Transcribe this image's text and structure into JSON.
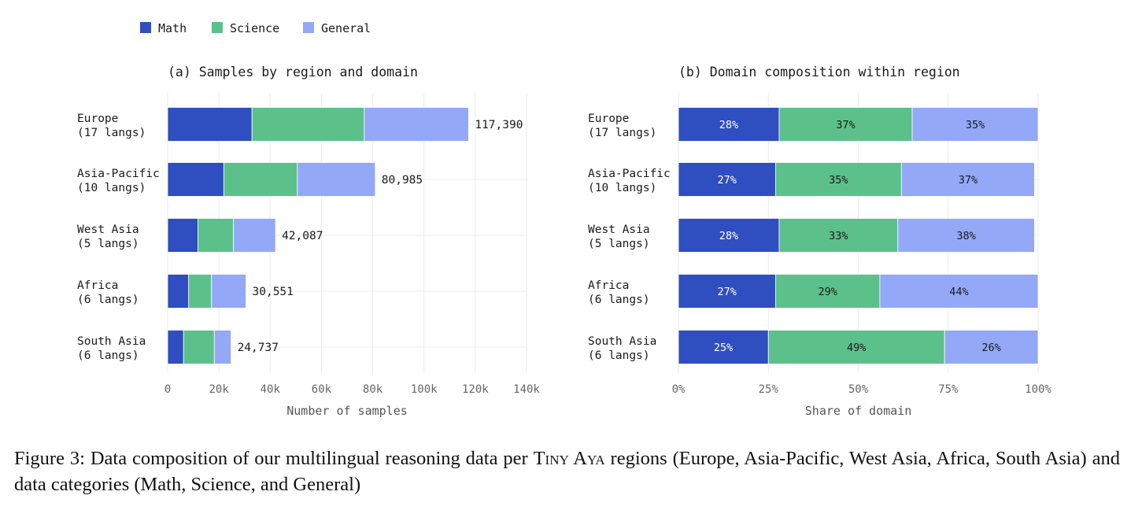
{
  "legend": [
    {
      "name": "Math",
      "color": "#2f4ebf"
    },
    {
      "name": "Science",
      "color": "#5cc08a"
    },
    {
      "name": "General",
      "color": "#93a8f7"
    }
  ],
  "chart_data": [
    {
      "type": "bar",
      "orientation": "horizontal",
      "stacked": true,
      "title": "(a) Samples by region and domain",
      "xlabel": "Number of samples",
      "ylabel": "",
      "xlim": [
        0,
        140000
      ],
      "xticks": [
        0,
        20000,
        40000,
        60000,
        80000,
        100000,
        120000,
        140000
      ],
      "xtick_labels": [
        "0",
        "20k",
        "40k",
        "60k",
        "80k",
        "100k",
        "120k",
        "140k"
      ],
      "grid": true,
      "categories": [
        [
          "Europe",
          "(17 langs)"
        ],
        [
          "Asia-Pacific",
          "(10 langs)"
        ],
        [
          "West Asia",
          "(5 langs)"
        ],
        [
          "Africa",
          "(6 langs)"
        ],
        [
          "South Asia",
          "(6 langs)"
        ]
      ],
      "series": [
        {
          "name": "Math",
          "values": [
            32900,
            21900,
            11800,
            8200,
            6200
          ]
        },
        {
          "name": "Science",
          "values": [
            43800,
            28700,
            13900,
            8900,
            12000
          ]
        },
        {
          "name": "General",
          "values": [
            40690,
            30385,
            16387,
            13451,
            6537
          ]
        }
      ],
      "totals": [
        117390,
        80985,
        42087,
        30551,
        24737
      ],
      "total_labels": [
        "117,390",
        "80,985",
        "42,087",
        "30,551",
        "24,737"
      ]
    },
    {
      "type": "bar",
      "orientation": "horizontal",
      "stacked": true,
      "title": "(b) Domain composition within region",
      "xlabel": "Share of domain",
      "ylabel": "",
      "xlim": [
        0,
        100
      ],
      "xticks": [
        0,
        25,
        50,
        75,
        100
      ],
      "xtick_labels": [
        "0%",
        "25%",
        "50%",
        "75%",
        "100%"
      ],
      "grid": true,
      "categories": [
        [
          "Europe",
          "(17 langs)"
        ],
        [
          "Asia-Pacific",
          "(10 langs)"
        ],
        [
          "West Asia",
          "(5 langs)"
        ],
        [
          "Africa",
          "(6 langs)"
        ],
        [
          "South Asia",
          "(6 langs)"
        ]
      ],
      "series": [
        {
          "name": "Math",
          "values": [
            28,
            27,
            28,
            27,
            25
          ],
          "labels": [
            "28%",
            "27%",
            "28%",
            "27%",
            "25%"
          ]
        },
        {
          "name": "Science",
          "values": [
            37,
            35,
            33,
            29,
            49
          ],
          "labels": [
            "37%",
            "35%",
            "33%",
            "29%",
            "49%"
          ]
        },
        {
          "name": "General",
          "values": [
            35,
            37,
            38,
            44,
            26
          ],
          "labels": [
            "35%",
            "37%",
            "38%",
            "44%",
            "26%"
          ]
        }
      ]
    }
  ],
  "caption": {
    "prefix": "Figure 3: Data composition of our multilingual reasoning data per ",
    "smallcaps": "Tiny Aya",
    "suffix": " regions (Europe, Asia-Pacific, West Asia, Africa, South Asia) and data categories (Math, Science, and General)"
  }
}
